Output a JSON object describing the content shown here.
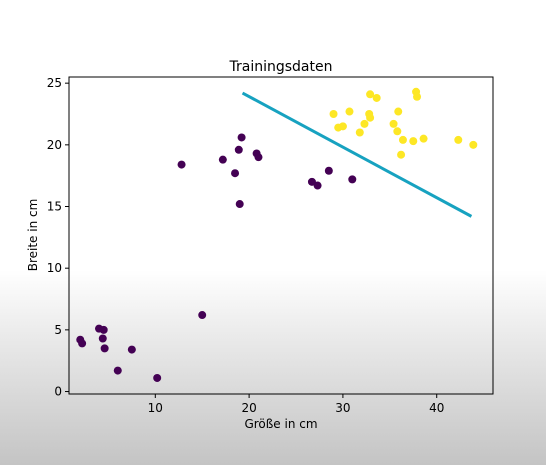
{
  "chart_data": {
    "type": "scatter",
    "title": "Trainingsdaten",
    "xlabel": "Größe in cm",
    "ylabel": "Breite in cm",
    "xlim": [
      0.8,
      46.0
    ],
    "ylim": [
      -0.2,
      25.5
    ],
    "xticks": [
      10,
      20,
      30,
      40
    ],
    "yticks": [
      0,
      5,
      10,
      15,
      20,
      25
    ],
    "grid": false,
    "colors": {
      "class0": "#440154",
      "class1": "#fde725",
      "line": "#17a2c0"
    },
    "series": [
      {
        "class": 0,
        "points": [
          [
            2.0,
            4.2
          ],
          [
            2.2,
            3.9
          ],
          [
            4.0,
            5.1
          ],
          [
            4.5,
            5.0
          ],
          [
            4.4,
            4.3
          ],
          [
            4.6,
            3.5
          ],
          [
            6.0,
            1.7
          ],
          [
            7.5,
            3.4
          ],
          [
            10.2,
            1.1
          ],
          [
            15.0,
            6.2
          ],
          [
            12.8,
            18.4
          ],
          [
            17.2,
            18.8
          ],
          [
            18.5,
            17.7
          ],
          [
            18.9,
            19.6
          ],
          [
            19.2,
            20.6
          ],
          [
            19.0,
            15.2
          ],
          [
            20.8,
            19.3
          ],
          [
            21.0,
            19.0
          ],
          [
            26.7,
            17.0
          ],
          [
            27.3,
            16.7
          ],
          [
            28.5,
            17.9
          ],
          [
            31.0,
            17.2
          ]
        ]
      },
      {
        "class": 1,
        "points": [
          [
            29.0,
            22.5
          ],
          [
            29.5,
            21.4
          ],
          [
            30.0,
            21.5
          ],
          [
            30.7,
            22.7
          ],
          [
            31.8,
            21.0
          ],
          [
            32.3,
            21.7
          ],
          [
            32.8,
            22.5
          ],
          [
            32.9,
            22.2
          ],
          [
            32.9,
            24.1
          ],
          [
            33.6,
            23.8
          ],
          [
            35.4,
            21.7
          ],
          [
            35.8,
            21.1
          ],
          [
            35.9,
            22.7
          ],
          [
            36.2,
            19.2
          ],
          [
            36.4,
            20.4
          ],
          [
            37.5,
            20.3
          ],
          [
            37.8,
            24.3
          ],
          [
            37.9,
            23.9
          ],
          [
            38.6,
            20.5
          ],
          [
            42.3,
            20.4
          ],
          [
            43.9,
            20.0
          ]
        ]
      }
    ],
    "line": {
      "x": [
        19.3,
        43.7
      ],
      "y": [
        24.2,
        14.2
      ]
    }
  }
}
